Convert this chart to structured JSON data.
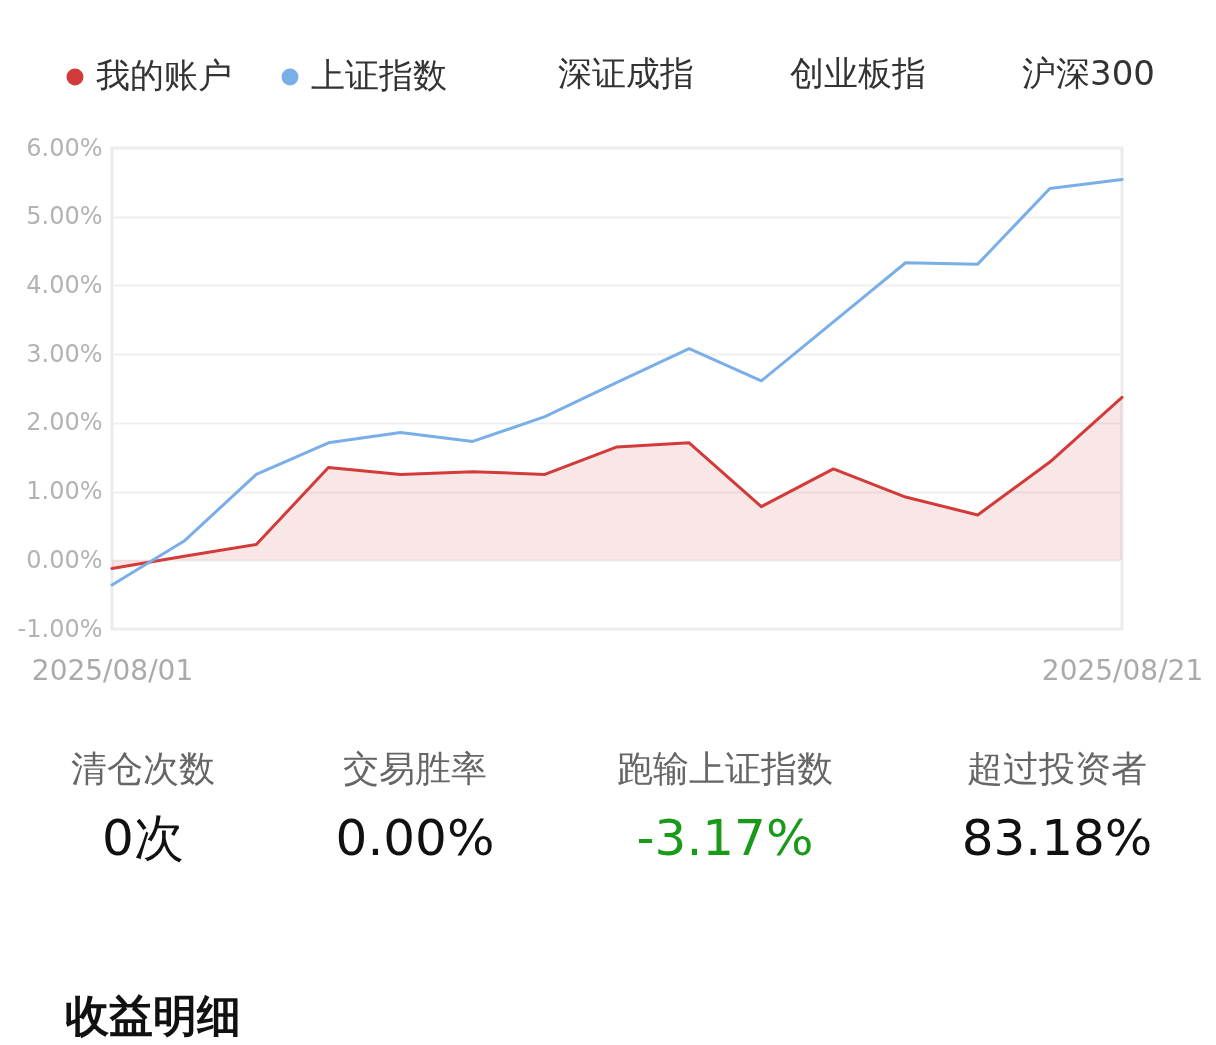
{
  "chart_data": {
    "type": "line",
    "categories": [
      "2025/08/01",
      null,
      null,
      null,
      null,
      null,
      null,
      null,
      null,
      null,
      null,
      null,
      null,
      null,
      "2025/08/21"
    ],
    "series": [
      {
        "name": "我的账户",
        "type": "area",
        "color": "#d33a3a",
        "values": [
          -0.12,
          0.06,
          0.23,
          1.35,
          1.25,
          1.29,
          1.25,
          1.65,
          1.71,
          0.78,
          1.33,
          0.92,
          0.66,
          1.43,
          2.37
        ]
      },
      {
        "name": "上证指数",
        "color": "#7aaee8",
        "values": [
          -0.36,
          0.28,
          1.25,
          1.71,
          1.86,
          1.73,
          2.09,
          2.59,
          3.08,
          2.61,
          3.47,
          4.33,
          4.31,
          5.41,
          5.54
        ]
      }
    ],
    "ylim": [
      -1,
      6
    ],
    "yticks": [
      {
        "value": -1,
        "label": "-1.00%"
      },
      {
        "value": 0,
        "label": "0.00%"
      },
      {
        "value": 1,
        "label": "1.00%"
      },
      {
        "value": 2,
        "label": "2.00%"
      },
      {
        "value": 3,
        "label": "3.00%"
      },
      {
        "value": 4,
        "label": "4.00%"
      },
      {
        "value": 5,
        "label": "5.00%"
      },
      {
        "value": 6,
        "label": "6.00%"
      }
    ],
    "grid": "y",
    "legend": "top left",
    "annotations": [
      "深证成指",
      "创业板指",
      "沪深300",
      "清仓次数",
      "0次",
      "交易胜率",
      "0.00%",
      "跑输上证指数",
      "-3.17%",
      "超过投资者",
      "83.18%",
      "收益明细"
    ]
  }
}
